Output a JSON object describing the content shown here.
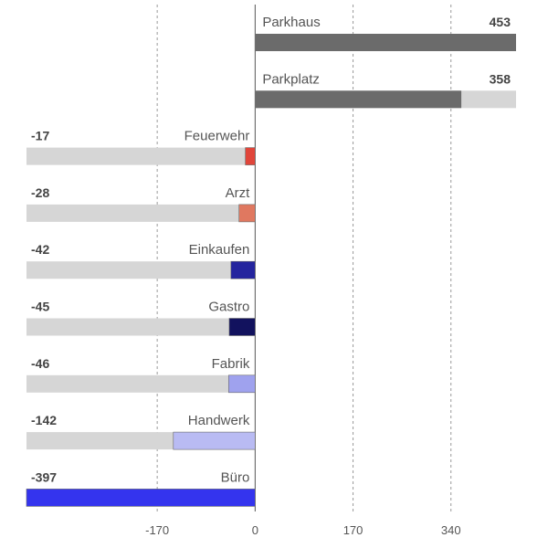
{
  "chart_data": {
    "type": "bar",
    "orientation": "horizontal",
    "categories": [
      "Parkhaus",
      "Parkplatz",
      "Feuerwehr",
      "Arzt",
      "Einkaufen",
      "Gastro",
      "Fabrik",
      "Handwerk",
      "Büro"
    ],
    "values": [
      453,
      358,
      -17,
      -28,
      -42,
      -45,
      -46,
      -142,
      -397
    ],
    "value_labels": [
      "453",
      "358",
      "-17",
      "-28",
      "-42",
      "-45",
      "-46",
      "-142",
      "-397"
    ],
    "bar_colors": [
      "#6b6b6b",
      "#6b6b6b",
      "#e0453a",
      "#e07860",
      "#24249e",
      "#12125e",
      "#9fa2ee",
      "#b9bbf3",
      "#3434ee"
    ],
    "background_bar_color": "#d6d6d6",
    "xlim": [
      -397,
      453
    ],
    "xticks": [
      -170,
      0,
      170,
      340
    ],
    "xtick_labels": [
      "-170",
      "0",
      "170",
      "340"
    ],
    "gridlines": "dashed-vertical",
    "legend": "none"
  }
}
